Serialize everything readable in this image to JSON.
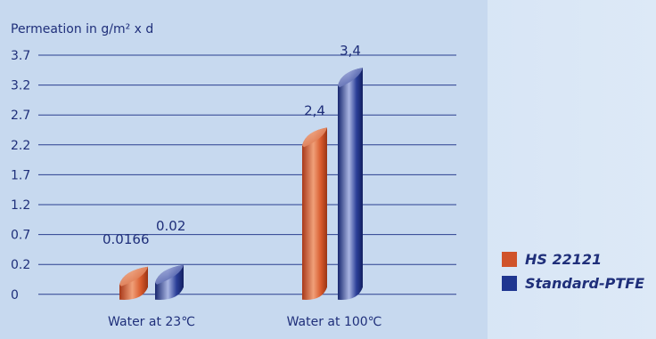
{
  "chart_data": {
    "type": "bar",
    "title": "Permeation in g/m² x d",
    "categories": [
      "Water at 23℃",
      "Water at 100℃"
    ],
    "y_ticks": [
      "3.7",
      "3.2",
      "2.7",
      "2.2",
      "1.7",
      "1.2",
      "0.7",
      "0.2",
      "0"
    ],
    "ylim": [
      0,
      3.7
    ],
    "series": [
      {
        "name": "HS 22121",
        "values": [
          0.0166,
          2.4
        ],
        "labels": [
          "0.0166",
          "2,4"
        ],
        "color": "#d0532a"
      },
      {
        "name": "Standard-PTFE",
        "values": [
          0.02,
          3.4
        ],
        "labels": [
          "0.02",
          "3,4"
        ],
        "color": "#1f3690"
      }
    ],
    "grid": true,
    "legend": "right"
  }
}
